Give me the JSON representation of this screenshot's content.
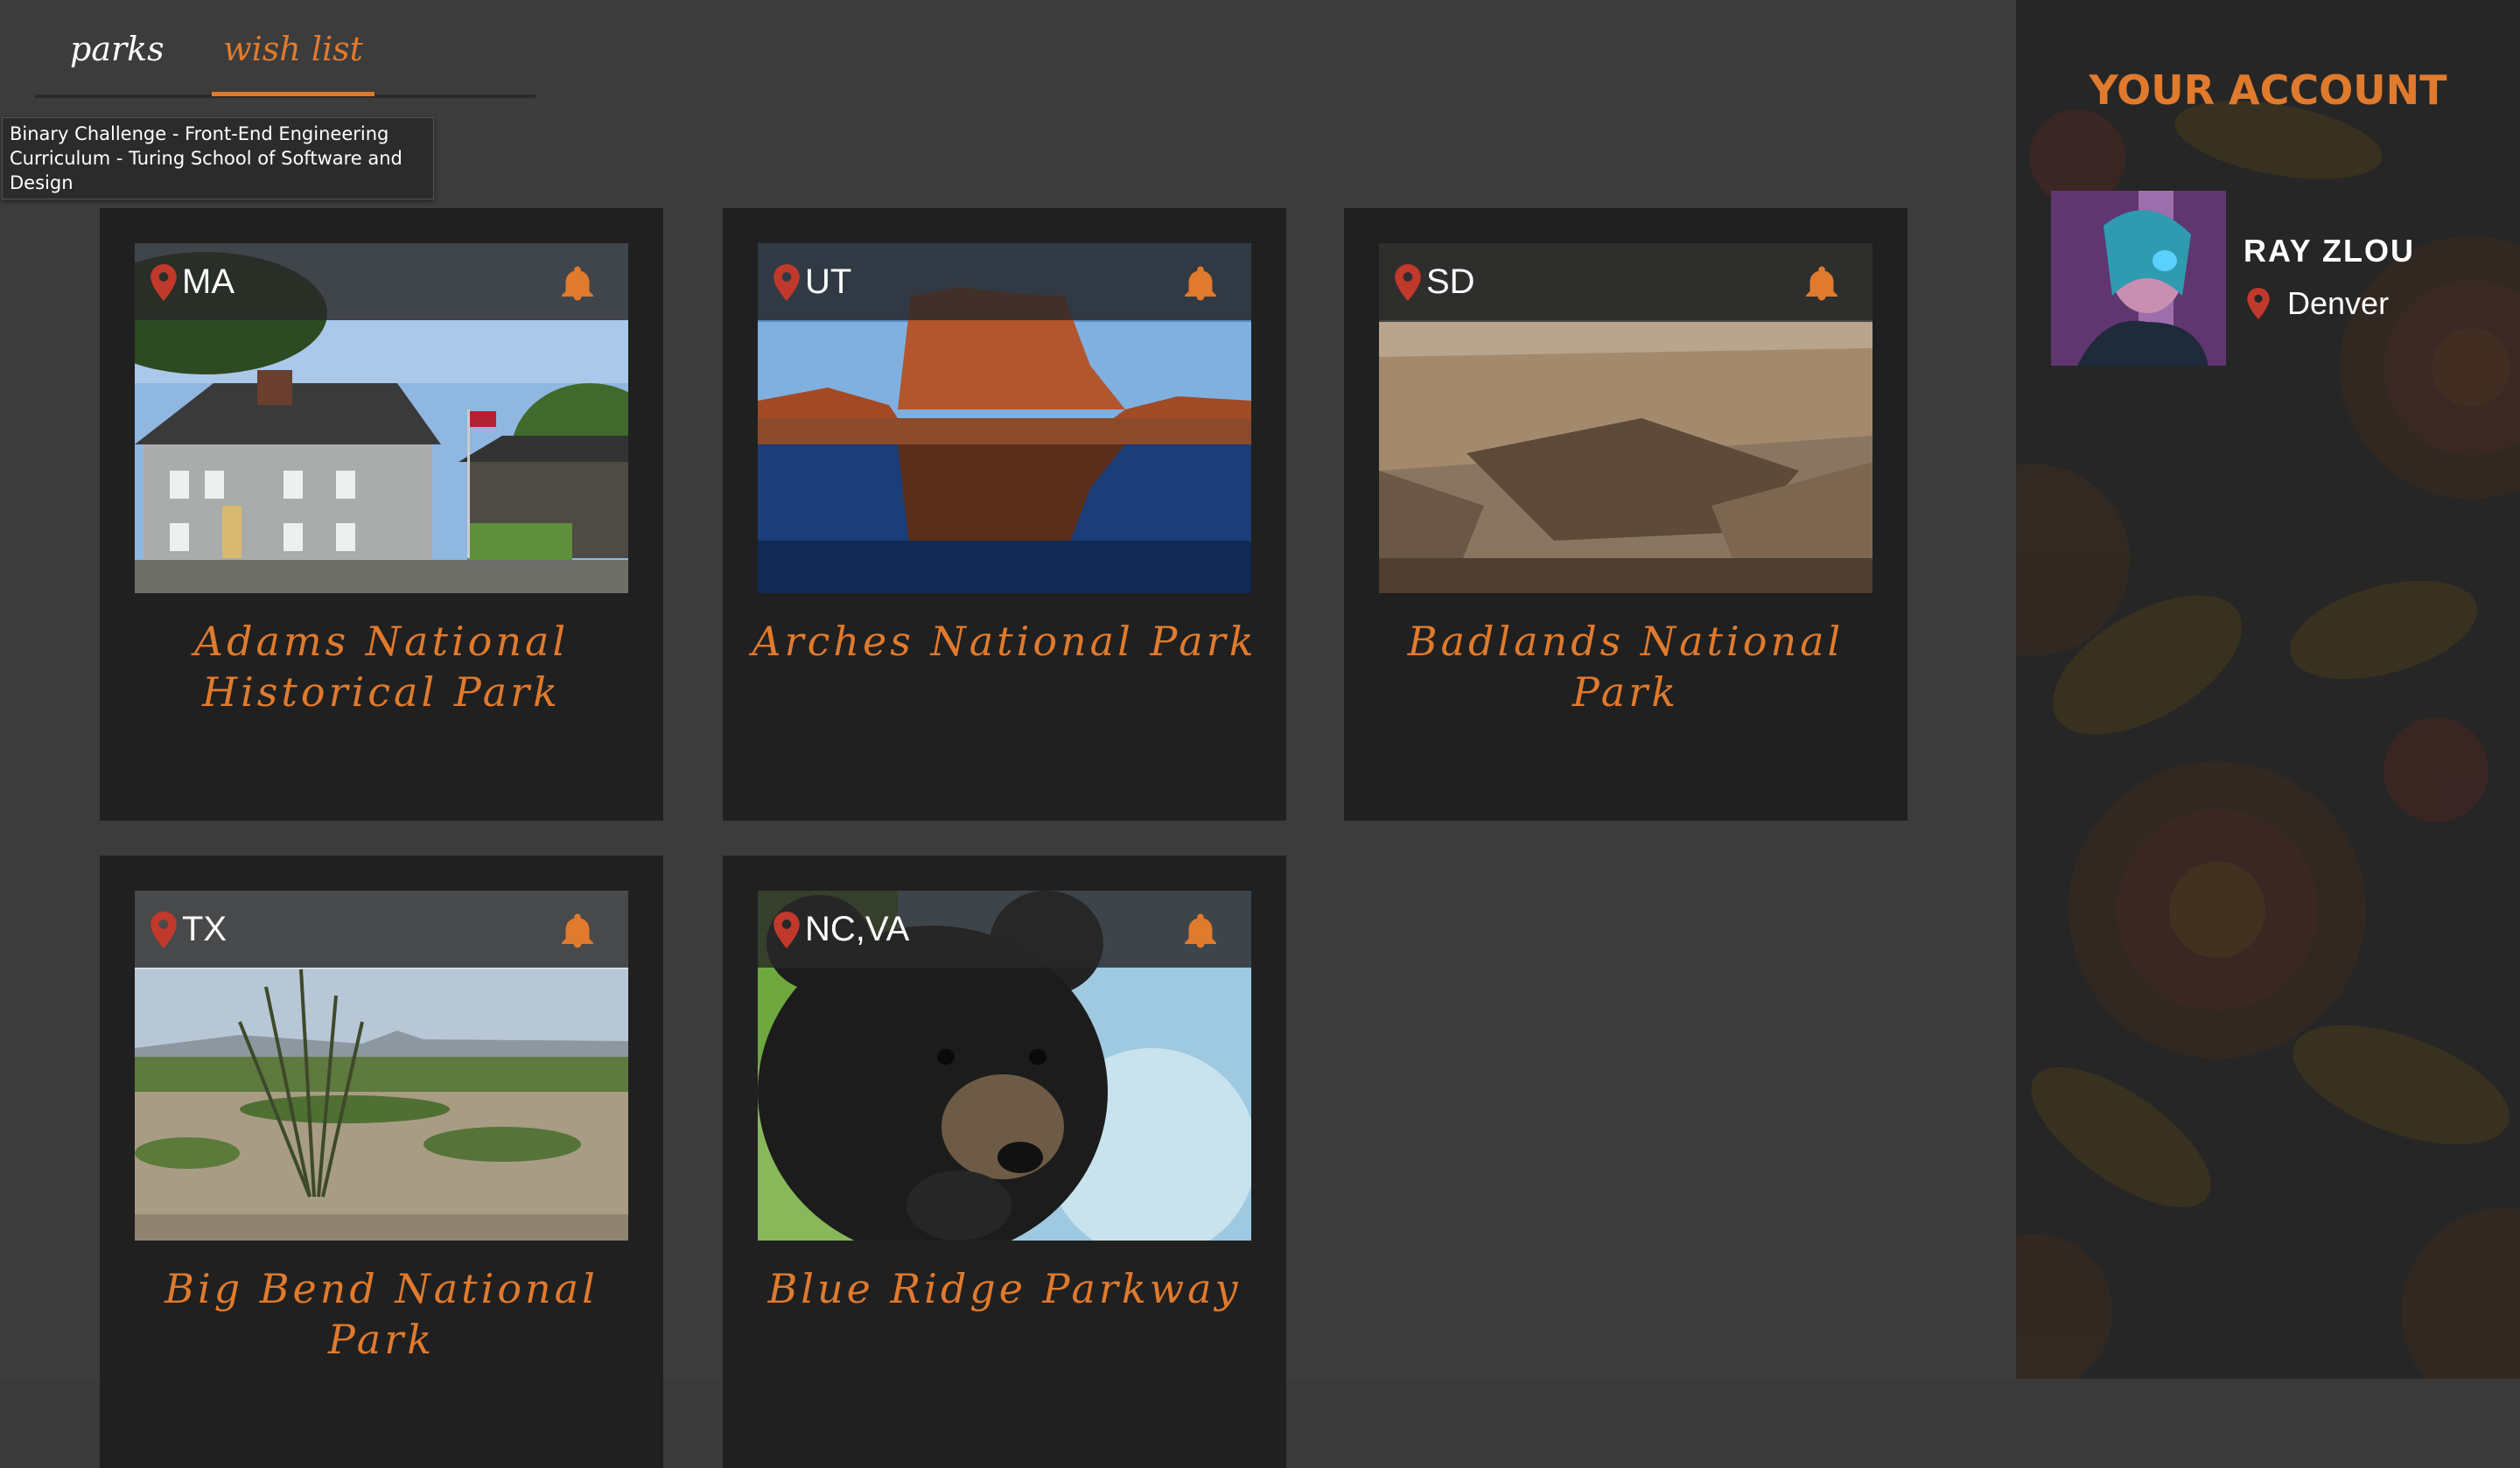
{
  "tabs": {
    "parks_label": "parks",
    "wishlist_label": "wish list",
    "active": "wish list"
  },
  "tooltip": {
    "text": "Binary Challenge - Front-End Engineering Curriculum - Turing School of Software and Design"
  },
  "parks": [
    {
      "state": "MA",
      "name": "Adams National Historical Park",
      "photo": "colonial-house-photo"
    },
    {
      "state": "UT",
      "name": "Arches National Park",
      "photo": "red-rock-reflection-photo"
    },
    {
      "state": "SD",
      "name": "Badlands National Park",
      "photo": "badlands-canyon-photo"
    },
    {
      "state": "TX",
      "name": "Big Bend National Park",
      "photo": "desert-ocotillo-photo"
    },
    {
      "state": "NC,VA",
      "name": "Blue Ridge Parkway",
      "photo": "black-bear-cub-photo"
    }
  ],
  "account": {
    "title": "YOUR ACCOUNT",
    "name": "RAY ZLOU",
    "location": "Denver"
  },
  "colors": {
    "accent": "#e07a2d",
    "card": "#202020",
    "background": "#3c3c3c",
    "sidebar": "#262626",
    "pin": "#c0392b"
  },
  "icons": {
    "location": "map-pin-icon",
    "notification": "bell-icon"
  }
}
